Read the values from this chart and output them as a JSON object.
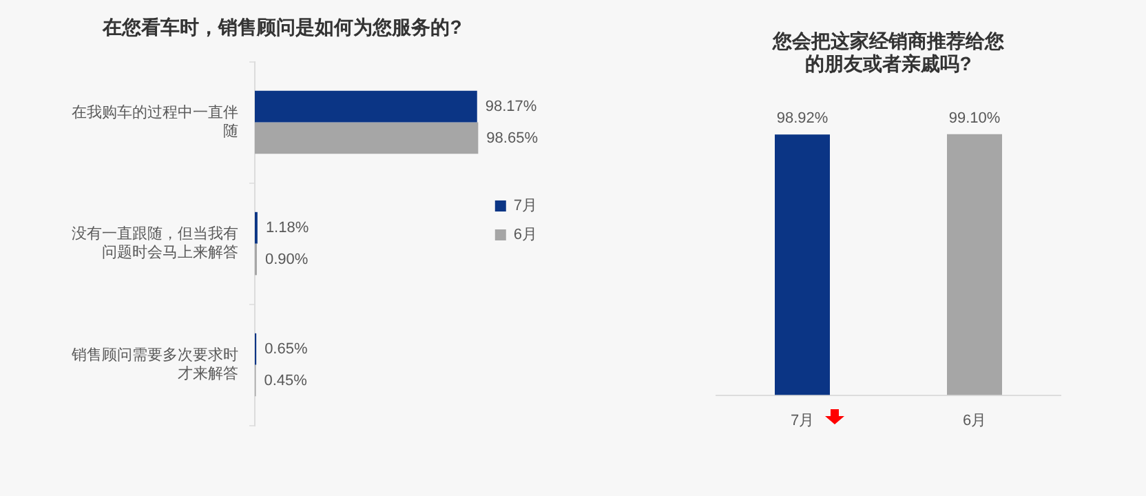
{
  "chart_data": [
    {
      "type": "bar",
      "orientation": "horizontal",
      "title": "在您看车时，销售顾问是如何为您服务的?",
      "categories": [
        "在我购车的过程中一直伴随",
        "没有一直跟随，但当我有问题时会马上来解答",
        "销售顾问需要多次要求时才来解答"
      ],
      "series": [
        {
          "name": "7月",
          "color": "#0b3585",
          "values": [
            98.17,
            1.18,
            0.65
          ],
          "value_labels": [
            "98.17%",
            "1.18%",
            "0.65%"
          ]
        },
        {
          "name": "6月",
          "color": "#a6a6a6",
          "values": [
            98.65,
            0.9,
            0.45
          ],
          "value_labels": [
            "98.65%",
            "0.90%",
            "0.45%"
          ]
        }
      ],
      "legend": "right"
    },
    {
      "type": "bar",
      "title": "您会把这家经销商推荐给您的朋友或者亲戚吗?",
      "categories": [
        "7月",
        "6月"
      ],
      "values": [
        98.92,
        99.1
      ],
      "colors": [
        "#0b3585",
        "#a6a6a6"
      ],
      "value_labels": [
        "98.92%",
        "99.10%"
      ],
      "legend": false
    }
  ]
}
